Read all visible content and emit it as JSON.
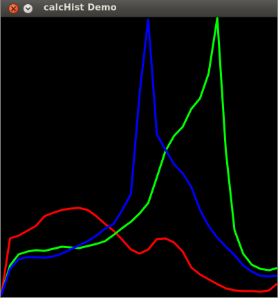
{
  "window": {
    "title": "calcHist Demo",
    "close_icon": "close-icon",
    "minimize_icon": "minimize-icon"
  },
  "colors": {
    "background": "#000000",
    "red": "#ff0000",
    "green": "#00ff00",
    "blue": "#0000ff"
  },
  "chart_data": {
    "type": "line",
    "x": [
      0,
      8,
      16,
      24,
      32,
      40,
      48,
      56,
      64,
      72,
      80,
      88,
      96,
      104,
      112,
      120,
      128,
      136,
      144,
      152,
      160,
      168,
      176,
      184,
      192,
      200,
      208,
      216,
      224,
      232,
      240,
      248,
      255
    ],
    "xlim": [
      0,
      255
    ],
    "ylim": [
      0,
      400
    ],
    "grid": false,
    "legend": "none",
    "series": [
      {
        "color": "#ff0000",
        "values": [
          3,
          84,
          88,
          95,
          102,
          116,
          121,
          125,
          127,
          128,
          125,
          116,
          105,
          95,
          82,
          68,
          62,
          68,
          83,
          84,
          78,
          65,
          42,
          32,
          25,
          18,
          12,
          9,
          8,
          8,
          7,
          9,
          18
        ]
      },
      {
        "color": "#00ff00",
        "values": [
          3,
          45,
          61,
          65,
          67,
          66,
          69,
          72,
          71,
          70,
          73,
          76,
          80,
          89,
          99,
          108,
          120,
          135,
          172,
          210,
          232,
          245,
          271,
          286,
          322,
          402,
          210,
          96,
          62,
          46,
          40,
          38,
          41
        ]
      },
      {
        "color": "#0000ff",
        "values": [
          3,
          40,
          54,
          57,
          57,
          56,
          58,
          62,
          68,
          74,
          80,
          88,
          98,
          105,
          125,
          148,
          292,
          400,
          234,
          212,
          191,
          178,
          158,
          125,
          102,
          85,
          72,
          60,
          45,
          36,
          30,
          29,
          30
        ]
      }
    ]
  }
}
